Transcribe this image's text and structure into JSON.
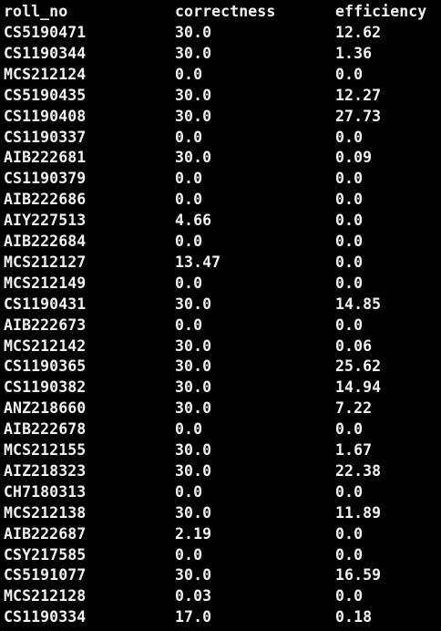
{
  "headers": [
    "roll_no",
    "correctness",
    "efficiency"
  ],
  "rows": [
    [
      "CS5190471",
      "30.0",
      "12.62"
    ],
    [
      "CS1190344",
      "30.0",
      "1.36"
    ],
    [
      "MCS212124",
      "0.0",
      "0.0"
    ],
    [
      "CS5190435",
      "30.0",
      "12.27"
    ],
    [
      "CS1190408",
      "30.0",
      "27.73"
    ],
    [
      "CS1190337",
      "0.0",
      "0.0"
    ],
    [
      "AIB222681",
      "30.0",
      "0.09"
    ],
    [
      "CS1190379",
      "0.0",
      "0.0"
    ],
    [
      "AIB222686",
      "0.0",
      "0.0"
    ],
    [
      "AIY227513",
      "4.66",
      "0.0"
    ],
    [
      "AIB222684",
      "0.0",
      "0.0"
    ],
    [
      "MCS212127",
      "13.47",
      "0.0"
    ],
    [
      "MCS212149",
      "0.0",
      "0.0"
    ],
    [
      "CS1190431",
      "30.0",
      "14.85"
    ],
    [
      "AIB222673",
      "0.0",
      "0.0"
    ],
    [
      "MCS212142",
      "30.0",
      "0.06"
    ],
    [
      "CS1190365",
      "30.0",
      "25.62"
    ],
    [
      "CS1190382",
      "30.0",
      "14.94"
    ],
    [
      "ANZ218660",
      "30.0",
      "7.22"
    ],
    [
      "AIB222678",
      "0.0",
      "0.0"
    ],
    [
      "MCS212155",
      "30.0",
      "1.67"
    ],
    [
      "AIZ218323",
      "30.0",
      "22.38"
    ],
    [
      "CH7180313",
      "0.0",
      "0.0"
    ],
    [
      "MCS212138",
      "30.0",
      "11.89"
    ],
    [
      "AIB222687",
      "2.19",
      "0.0"
    ],
    [
      "CSY217585",
      "0.0",
      "0.0"
    ],
    [
      "CS5191077",
      "30.0",
      "16.59"
    ],
    [
      "MCS212128",
      "0.03",
      "0.0"
    ],
    [
      "CS1190334",
      "17.0",
      "0.18"
    ]
  ],
  "colors": {
    "background": "#000000",
    "text": "#f2f2f2"
  }
}
